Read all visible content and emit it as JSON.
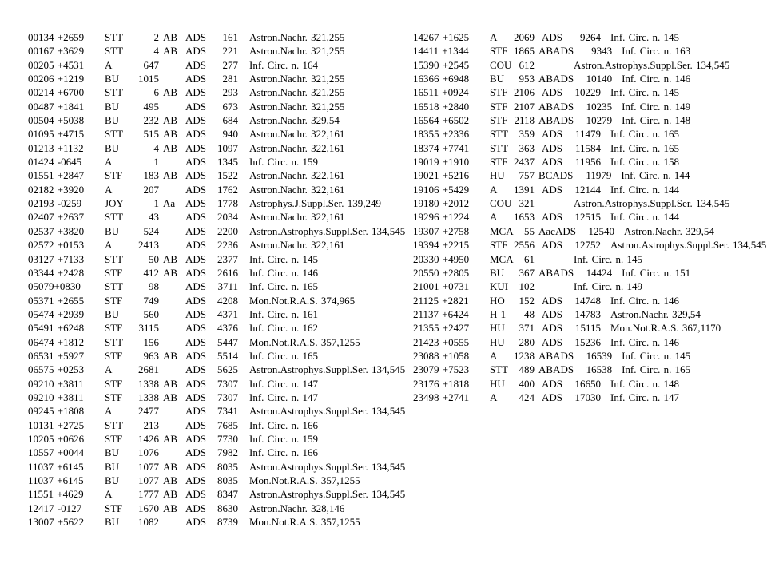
{
  "page": {
    "background": "#ffffff",
    "text_color": "#000000",
    "ads_label": "ADS",
    "columns_meta": [
      "position",
      "discoverer",
      "number",
      "components",
      "ads_number",
      "reference"
    ]
  },
  "table": {
    "left_rows": [
      [
        "00134 +2659",
        "STT",
        "2",
        "AB",
        "161",
        "Astron.Nachr. 321,255"
      ],
      [
        "00167 +3629",
        "STT",
        "4",
        "AB",
        "221",
        "Astron.Nachr. 321,255"
      ],
      [
        "00205 +4531",
        "A",
        "647",
        "",
        "277",
        "Inf. Circ. n. 164"
      ],
      [
        "00206 +1219",
        "BU",
        "1015",
        "",
        "281",
        "Astron.Nachr. 321,255"
      ],
      [
        "00214 +6700",
        "STT",
        "6",
        "AB",
        "293",
        "Astron.Nachr. 321,255"
      ],
      [
        "00487 +1841",
        "BU",
        "495",
        "",
        "673",
        "Astron.Nachr. 321,255"
      ],
      [
        "00504 +5038",
        "BU",
        "232",
        "AB",
        "684",
        "Astron.Nachr. 329,54"
      ],
      [
        "01095 +4715",
        "STT",
        "515",
        "AB",
        "940",
        "Astron.Nachr. 322,161"
      ],
      [
        "01213 +1132",
        "BU",
        "4",
        "AB",
        "1097",
        "Astron.Nachr. 322,161"
      ],
      [
        "01424 -0645",
        "A",
        "1",
        "",
        "1345",
        "Inf. Circ. n. 159"
      ],
      [
        "01551 +2847",
        "STF",
        "183",
        "AB",
        "1522",
        "Astron.Nachr. 322,161"
      ],
      [
        "02182 +3920",
        "A",
        "207",
        "",
        "1762",
        "Astron.Nachr. 322,161"
      ],
      [
        "02193 -0259",
        "JOY",
        "1",
        "Aa",
        "1778",
        "Astrophys.J.Suppl.Ser. 139,249"
      ],
      [
        "02407 +2637",
        "STT",
        "43",
        "",
        "2034",
        "Astron.Nachr. 322,161"
      ],
      [
        "02537 +3820",
        "BU",
        "524",
        "",
        "2200",
        "Astron.Astrophys.Suppl.Ser. 134,545"
      ],
      [
        "02572 +0153",
        "A",
        "2413",
        "",
        "2236",
        "Astron.Nachr. 322,161"
      ],
      [
        "03127 +7133",
        "STT",
        "50",
        "AB",
        "2377",
        "Inf. Circ. n. 145"
      ],
      [
        "03344 +2428",
        "STF",
        "412",
        "AB",
        "2616",
        "Inf. Circ. n. 146"
      ],
      [
        "05079+0830",
        "STT",
        "98",
        "",
        "3711",
        "Inf. Circ. n. 165"
      ],
      [
        "05371 +2655",
        "STF",
        "749",
        "",
        "4208",
        "Mon.Not.R.A.S. 374,965"
      ],
      [
        "05474 +2939",
        "BU",
        "560",
        "",
        "4371",
        "Inf. Circ. n. 161"
      ],
      [
        "05491 +6248",
        "STF",
        "3115",
        "",
        "4376",
        "Inf. Circ. n. 162"
      ],
      [
        "06474 +1812",
        "STT",
        "156",
        "",
        "5447",
        "Mon.Not.R.A.S. 357,1255"
      ],
      [
        "06531 +5927",
        "STF",
        "963",
        "AB",
        "5514",
        "Inf. Circ. n. 165"
      ],
      [
        "06575 +0253",
        "A",
        "2681",
        "",
        "5625",
        "Astron.Astrophys.Suppl.Ser. 134,545"
      ],
      [
        "09210 +3811",
        "STF",
        "1338",
        "AB",
        "7307",
        "Inf. Circ. n. 147"
      ],
      [
        "09210 +3811",
        "STF",
        "1338",
        "AB",
        "7307",
        "Inf. Circ. n. 147"
      ],
      [
        "09245 +1808",
        "A",
        "2477",
        "",
        "7341",
        "Astron.Astrophys.Suppl.Ser. 134,545"
      ],
      [
        "10131 +2725",
        "STT",
        "213",
        "",
        "7685",
        "Inf. Circ. n. 166"
      ],
      [
        "10205 +0626",
        "STF",
        "1426",
        "AB",
        "7730",
        "Inf. Circ. n. 159"
      ],
      [
        "10557 +0044",
        "BU",
        "1076",
        "",
        "7982",
        "Inf. Circ. n. 166"
      ],
      [
        "11037 +6145",
        "BU",
        "1077",
        "AB",
        "8035",
        "Astron.Astrophys.Suppl.Ser. 134,545"
      ],
      [
        "11037 +6145",
        "BU",
        "1077",
        "AB",
        "8035",
        "Mon.Not.R.A.S. 357,1255"
      ],
      [
        "11551 +4629",
        "A",
        "1777",
        "AB",
        "8347",
        "Astron.Astrophys.Suppl.Ser. 134,545"
      ],
      [
        "12417 -0127",
        "STF",
        "1670",
        "AB",
        "8630",
        "Astron.Nachr. 328,146"
      ],
      [
        "13007 +5622",
        "BU",
        "1082",
        "",
        "8739",
        "Mon.Not.R.A.S. 357,1255"
      ]
    ],
    "right_rows": [
      [
        "14267 +1625",
        "A",
        "2069",
        "",
        "9264",
        "Inf. Circ. n. 145"
      ],
      [
        "14411 +1344",
        "STF",
        "1865",
        "AB",
        "9343",
        "Inf. Circ. n. 163"
      ],
      [
        "15390 +2545",
        "COU",
        "612",
        "",
        "",
        "Astron.Astrophys.Suppl.Ser. 134,545"
      ],
      [
        "16366 +6948",
        "BU",
        "953",
        "AB",
        "10140",
        "Inf. Circ. n. 146"
      ],
      [
        "16511 +0924",
        "STF",
        "2106",
        "",
        "10229",
        "Inf. Circ. n. 145"
      ],
      [
        "16518 +2840",
        "STF",
        "2107",
        "AB",
        "10235",
        "Inf. Circ. n. 149"
      ],
      [
        "16564 +6502",
        "STF",
        "2118",
        "AB",
        "10279",
        "Inf. Circ. n. 148"
      ],
      [
        "18355 +2336",
        "STT",
        "359",
        "",
        "11479",
        "Inf. Circ. n. 165"
      ],
      [
        "18374 +7741",
        "STT",
        "363",
        "",
        "11584",
        "Inf. Circ. n. 165"
      ],
      [
        "19019 +1910",
        "STF",
        "2437",
        "",
        "11956",
        "Inf. Circ. n. 158"
      ],
      [
        "19021 +5216",
        "HU",
        "757",
        "BC",
        "11979",
        "Inf. Circ. n. 144"
      ],
      [
        "19106 +5429",
        "A",
        "1391",
        "",
        "12144",
        "Inf. Circ. n. 144"
      ],
      [
        "19180 +2012",
        "COU",
        "321",
        "",
        "",
        "Astron.Astrophys.Suppl.Ser. 134,545"
      ],
      [
        "19296 +1224",
        "A",
        "1653",
        "",
        "12515",
        "Inf. Circ. n. 144"
      ],
      [
        "19307 +2758",
        "MCA",
        "55",
        "Aac",
        "12540",
        "Astron.Nachr. 329,54"
      ],
      [
        "19394 +2215",
        "STF",
        "2556",
        "",
        "12752",
        "Astron.Astrophys.Suppl.Ser. 134,545"
      ],
      [
        "20330 +4950",
        "MCA",
        "61",
        "",
        "",
        "Inf. Circ. n. 145"
      ],
      [
        "20550 +2805",
        "BU",
        "367",
        "AB",
        "14424",
        "Inf. Circ. n. 151"
      ],
      [
        "21001 +0731",
        "KUI",
        "102",
        "",
        "",
        "Inf. Circ. n. 149"
      ],
      [
        "21125 +2821",
        "HO",
        "152",
        "",
        "14748",
        "Inf. Circ. n. 146"
      ],
      [
        "21137 +6424",
        "H 1",
        "48",
        "",
        "14783",
        "Astron.Nachr. 329,54"
      ],
      [
        "21355 +2427",
        "HU",
        "371",
        "",
        "15115",
        "Mon.Not.R.A.S. 367,1170"
      ],
      [
        "21423 +0555",
        "HU",
        "280",
        "",
        "15236",
        "Inf. Circ. n. 146"
      ],
      [
        "23088 +1058",
        "A",
        "1238",
        "AB",
        "16539",
        "Inf. Circ. n. 145"
      ],
      [
        "23079 +7523",
        "STT",
        "489",
        "AB",
        "16538",
        "Inf. Circ. n. 165"
      ],
      [
        "23176 +1818",
        "HU",
        "400",
        "",
        "16650",
        "Inf. Circ. n. 148"
      ],
      [
        "23498 +2741",
        "A",
        "424",
        "",
        "17030",
        "Inf. Circ. n. 147"
      ]
    ]
  }
}
